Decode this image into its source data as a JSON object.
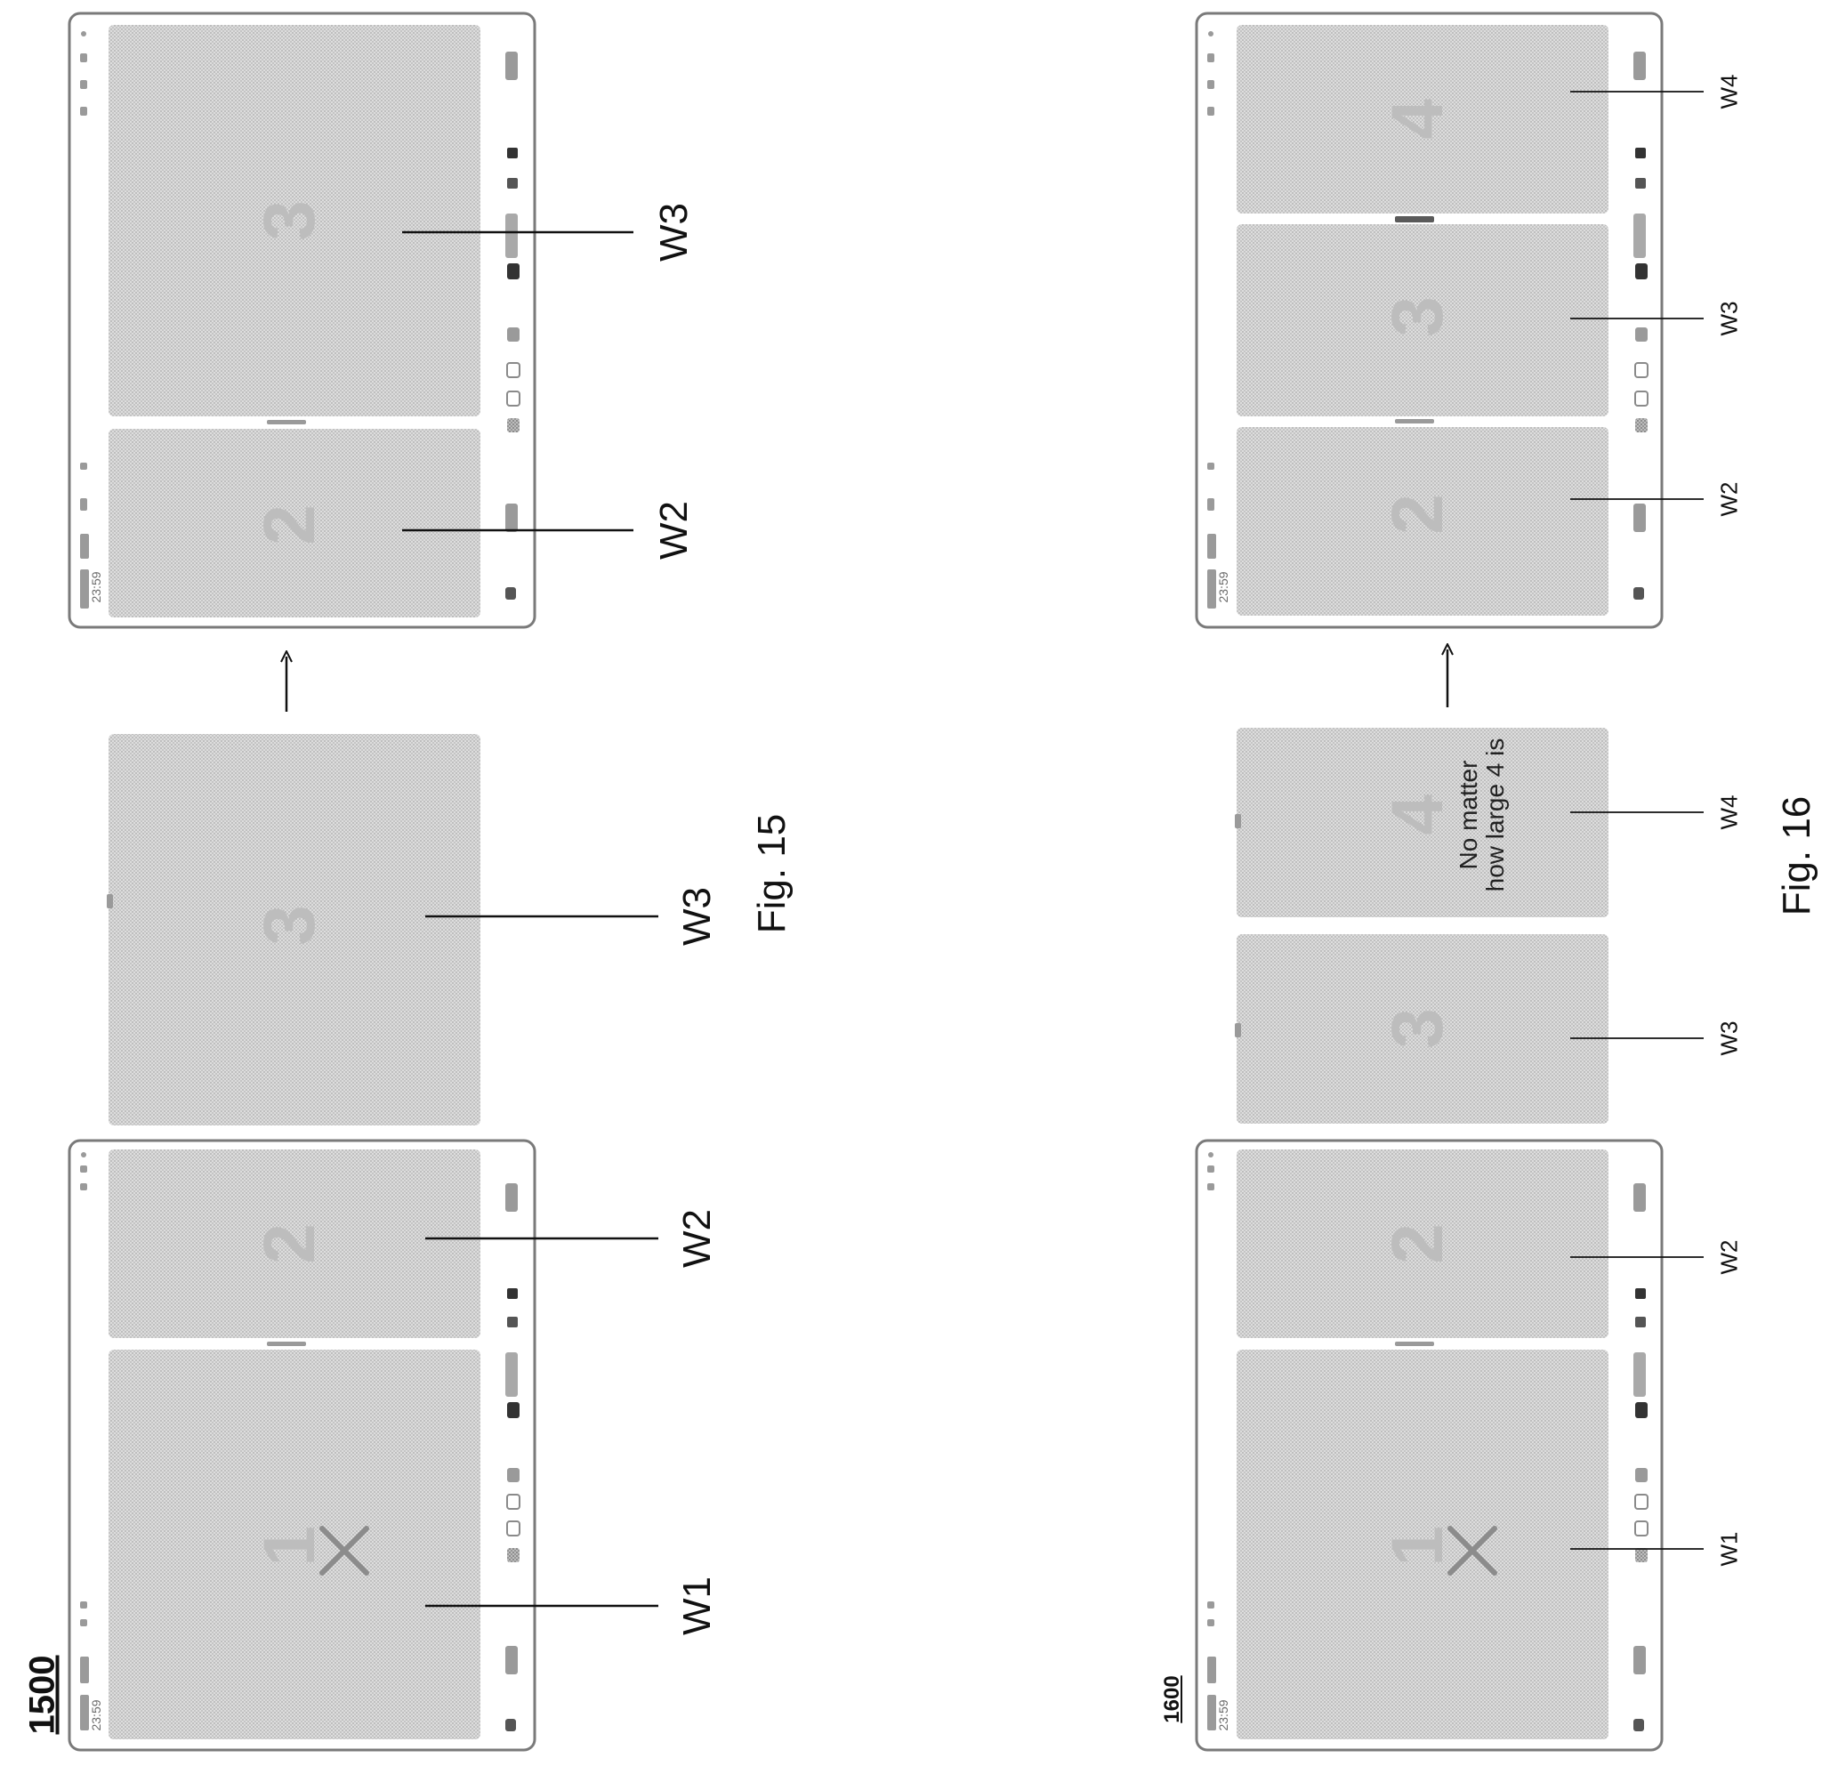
{
  "fig15": {
    "ref_number": "1500",
    "caption": "Fig. 15",
    "windows": [
      {
        "label": "W1",
        "digit": "1",
        "closing": true
      },
      {
        "label": "W2",
        "digit": "2"
      },
      {
        "label": "W3",
        "digit": "3"
      }
    ],
    "after": {
      "windows": [
        {
          "label": "W2",
          "digit": "2"
        },
        {
          "label": "W3",
          "digit": "3"
        }
      ]
    }
  },
  "fig16": {
    "ref_number": "1600",
    "caption": "Fig. 16",
    "windows": [
      {
        "label": "W1",
        "digit": "1",
        "closing": true
      },
      {
        "label": "W2",
        "digit": "2"
      },
      {
        "label": "W3",
        "digit": "3"
      },
      {
        "label": "W4",
        "digit": "4",
        "note": [
          "No matter",
          "how large 4 is"
        ]
      }
    ],
    "after": {
      "windows": [
        {
          "label": "W2",
          "digit": "2"
        },
        {
          "label": "W3",
          "digit": "3"
        },
        {
          "label": "W4",
          "digit": "4"
        }
      ]
    }
  },
  "taskbar": {
    "time": "23:59"
  },
  "style": {
    "window_fill": "#d8d8d8",
    "frame_stroke": "#7a7a7a",
    "ink": "#111111"
  }
}
